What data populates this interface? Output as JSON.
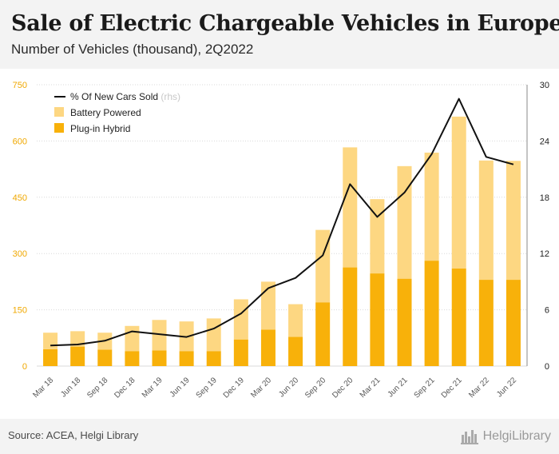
{
  "header": {
    "title": "Sale of Electric Chargeable Vehicles in Europe",
    "subtitle": "Number of Vehicles (thousand), 2Q2022"
  },
  "footer": {
    "source": "Source: ACEA, Helgi Library",
    "logo_text": "HelgiLibrary",
    "logo_icon": "city-skyline-icon"
  },
  "colors": {
    "battery": "#fdd782",
    "hybrid": "#f8b10a",
    "line": "#111111",
    "left_axis_text": "#f0a800",
    "right_axis_text": "#222222",
    "grid": "#d9d9d9"
  },
  "chart_data": {
    "type": "bar",
    "stacked": true,
    "categories": [
      "Mar 18",
      "Jun 18",
      "Sep 18",
      "Dec 18",
      "Mar 19",
      "Jun 19",
      "Sep 19",
      "Dec 19",
      "Mar 20",
      "Jun 20",
      "Sep 20",
      "Dec 20",
      "Mar 21",
      "Jun 21",
      "Sep 21",
      "Dec 21",
      "Mar 22",
      "Jun 22"
    ],
    "series": [
      {
        "name": "Plug-in Hybrid",
        "type": "bar",
        "axis": "left",
        "values": [
          45,
          52,
          44,
          40,
          42,
          40,
          40,
          71,
          97,
          78,
          170,
          263,
          247,
          233,
          281,
          260,
          230,
          230
        ]
      },
      {
        "name": "Battery Powered",
        "type": "bar",
        "axis": "left",
        "values": [
          44,
          41,
          45,
          67,
          81,
          79,
          87,
          107,
          128,
          87,
          193,
          320,
          198,
          300,
          288,
          405,
          318,
          317
        ]
      },
      {
        "name": "% Of New Cars Sold",
        "name_suffix": "(rhs)",
        "type": "line",
        "axis": "right",
        "values": [
          2.2,
          2.3,
          2.7,
          3.7,
          3.4,
          3.1,
          4.0,
          5.6,
          8.3,
          9.4,
          11.8,
          19.4,
          15.9,
          18.5,
          22.6,
          28.5,
          22.3,
          21.5
        ]
      }
    ],
    "y_left": {
      "ticks": [
        "0",
        "150",
        "300",
        "450",
        "600",
        "750"
      ],
      "ylim": [
        0,
        750
      ]
    },
    "y_right": {
      "ticks": [
        "0",
        "6",
        "12",
        "18",
        "24",
        "30"
      ],
      "ylim": [
        0,
        30
      ]
    },
    "legend_position": "top-left",
    "grid": true
  }
}
